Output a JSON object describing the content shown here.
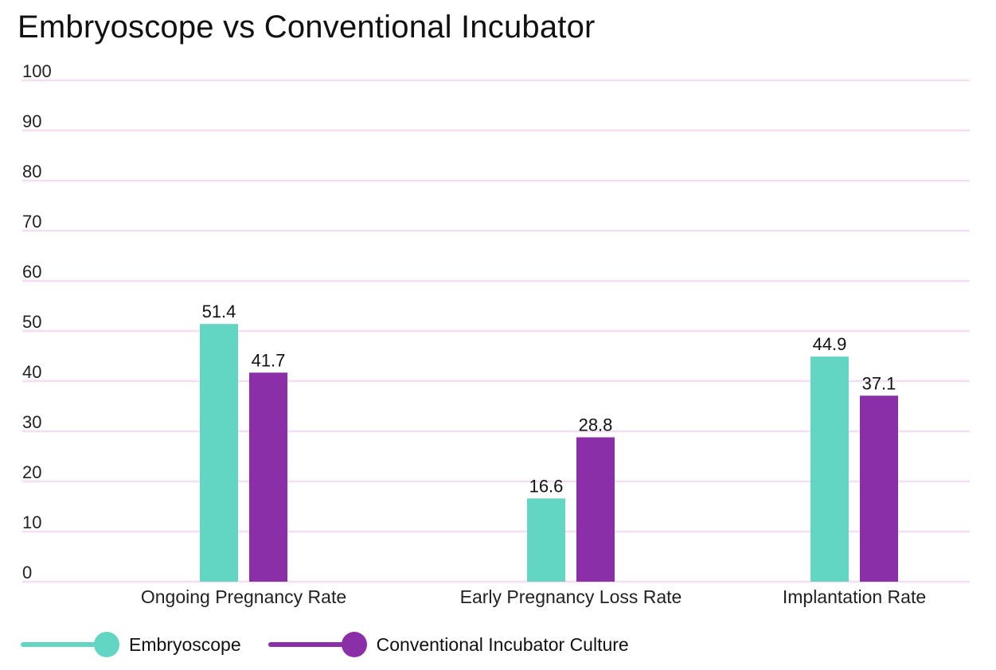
{
  "chart_data": {
    "type": "bar",
    "title": "Embryoscope vs Conventional Incubator",
    "categories": [
      "Ongoing Pregnancy Rate",
      "Early Pregnancy Loss Rate",
      "Implantation Rate"
    ],
    "series": [
      {
        "name": "Embryoscope",
        "color": "#62d5c3",
        "values": [
          51.4,
          16.6,
          44.9
        ]
      },
      {
        "name": "Conventional Incubator Culture",
        "color": "#8b2fa9",
        "values": [
          41.7,
          28.8,
          37.1
        ]
      }
    ],
    "ylim": [
      0,
      100
    ],
    "yticks": [
      0,
      10,
      20,
      30,
      40,
      50,
      60,
      70,
      80,
      90,
      100
    ],
    "xlabel": "",
    "ylabel": "",
    "grid": true,
    "grid_color": "#f3def3",
    "legend_position": "bottom-left"
  }
}
